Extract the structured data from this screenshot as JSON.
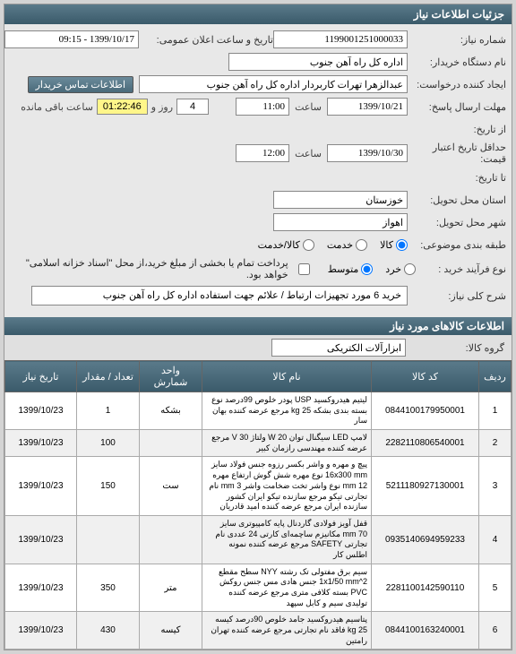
{
  "panel_title": "جزئیات اطلاعات نیاز",
  "labels": {
    "need_number": "شماره نیاز:",
    "announce_date": "تاریخ و ساعت اعلان عمومی:",
    "buyer_org": "نام دستگاه خریدار:",
    "creator": "ایجاد کننده درخواست:",
    "contact_btn": "اطلاعات تماس خریدار",
    "deadline": "مهلت ارسال پاسخ:",
    "from_date": "از تاریخ:",
    "to_date": "تا تاریخ:",
    "min_validity": "حداقل تاریخ اعتبار قیمت:",
    "time_lbl": "ساعت",
    "day_lbl": "روز و",
    "remain_lbl": "ساعت باقی مانده",
    "province": "استان محل تحویل:",
    "city": "شهر محل تحویل:",
    "category": "طبقه بندی موضوعی:",
    "goods": "کالا",
    "service": "خدمت",
    "goods_service": "کالا/خدمت",
    "purchase_type": "نوع فرآیند خرید :",
    "small": "خرد",
    "medium": "متوسط",
    "note_text": "پرداخت تمام یا بخشی از مبلغ خرید،از محل \"اسناد خزانه اسلامی\" خواهد بود.",
    "need_desc": "شرح کلی نیاز:",
    "items_header": "اطلاعات کالاهای مورد نیاز",
    "goods_group": "گروه کالا:"
  },
  "values": {
    "need_number": "1199001251000033",
    "announce_date": "1399/10/17 - 09:15",
    "buyer_org": "اداره کل راه آهن جنوب",
    "creator": "عبدالزهرا تهرات کاربردار اداره کل راه آهن جنوب",
    "deadline_date": "1399/10/21",
    "deadline_time": "11:00",
    "cd_days": "4",
    "cd_time": "01:22:46",
    "validity_date": "1399/10/30",
    "validity_time": "12:00",
    "province": "خوزستان",
    "city": "اهواز",
    "need_desc": "خرید 6 مورد تجهیزات ارتباط / علائم جهت استفاده اداره کل راه آهن جنوب",
    "goods_group": "ابزارآلات الکتریکی"
  },
  "table": {
    "headers": [
      "ردیف",
      "کد کالا",
      "نام کالا",
      "واحد شمارش",
      "تعداد / مقدار",
      "تاریخ نیاز"
    ],
    "rows": [
      {
        "n": "1",
        "code": "0844100179950001",
        "name": "لیتیم هیدروکسید USP پودر خلوص 99درصد نوع بسته بندی بشکه 25 kg مرجع عرضه کننده بهان سار",
        "unit": "بشکه",
        "qty": "1",
        "date": "1399/10/23"
      },
      {
        "n": "2",
        "code": "2282110806540001",
        "name": "لامپ LED سیگنال توان W 20 ولتاژ V 30 مرجع عرضه کننده مهندسی رازمان کبیر",
        "unit": "",
        "qty": "100",
        "date": "1399/10/23"
      },
      {
        "n": "3",
        "code": "5211180927130001",
        "name": "پیچ و مهره و واشر بکسر رزوه جنس فولاد سایز 16x300 mm نوع مهره شش گوش ارتفاع مهره 12 mm نوع واشر تخت ضخامت واشر 3 mm نام تجارتی تیکو مرجع سازنده تیکو ایران کشور سازنده ایران مرجع عرضه کننده امید قادریان",
        "unit": "ست",
        "qty": "150",
        "date": "1399/10/23"
      },
      {
        "n": "4",
        "code": "0935140694959233",
        "name": "قفل آویز فولادی گاردنال پایه کامپیوتری سایز mm 70 مکانیزم ساچمه‌ای کارتی 24 عددی نام تجارتی SAFETY مرجع عرضه کننده نمونه اطلس کار",
        "unit": "",
        "qty": "",
        "date": "1399/10/23"
      },
      {
        "n": "5",
        "code": "2281100142590110",
        "name": "سیم برق مفتولی تک رشته NYY سطح مقطع 1x1/50 mm^2 جنس هادی مس جنس روکش PVC بسته کلافی متری مرجع عرضه کننده تولیدی سیم و کابل سپهد",
        "unit": "متر",
        "qty": "350",
        "date": "1399/10/23"
      },
      {
        "n": "6",
        "code": "0844100163240001",
        "name": "پتاسیم هیدروکسید جامد خلوص 90درصد کیسه 25 kg فاقد نام تجارتی مرجع عرضه کننده تهران رامتین",
        "unit": "کیسه",
        "qty": "430",
        "date": "1399/10/23"
      }
    ]
  }
}
